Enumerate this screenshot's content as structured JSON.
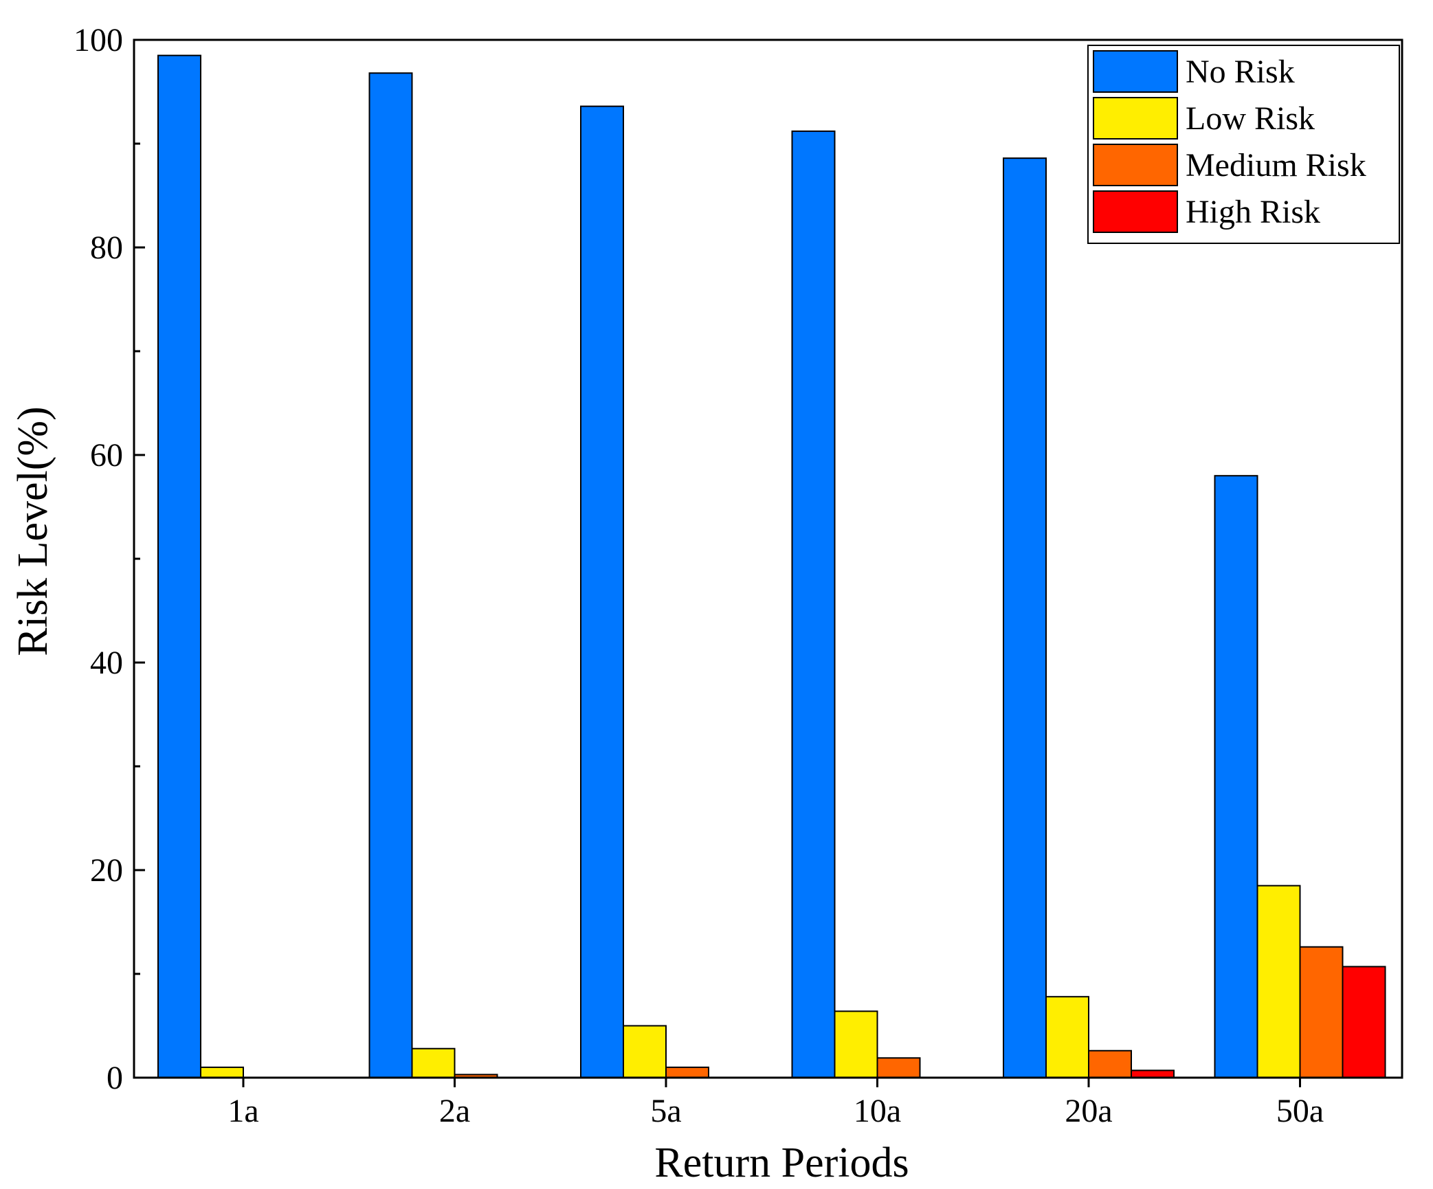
{
  "chart_data": {
    "type": "bar",
    "title": "",
    "xlabel": "Return Periods",
    "ylabel": "Risk Level(%)",
    "ylim": [
      0,
      100
    ],
    "yticks": [
      0,
      20,
      40,
      60,
      80,
      100
    ],
    "categories": [
      "1a",
      "2a",
      "5a",
      "10a",
      "20a",
      "50a"
    ],
    "series": [
      {
        "name": "No Risk",
        "color": "#0077ff",
        "values": [
          98.5,
          96.8,
          93.6,
          91.2,
          88.6,
          58.0
        ]
      },
      {
        "name": "Low Risk",
        "color": "#ffee00",
        "values": [
          1.0,
          2.8,
          5.0,
          6.4,
          7.8,
          18.5
        ]
      },
      {
        "name": "Medium Risk",
        "color": "#ff6600",
        "values": [
          0.0,
          0.3,
          1.0,
          1.9,
          2.6,
          12.6
        ]
      },
      {
        "name": "High Risk",
        "color": "#ff0000",
        "values": [
          0.0,
          0.0,
          0.0,
          0.0,
          0.7,
          10.7
        ]
      }
    ],
    "grid": false,
    "legend_position": "top-right"
  }
}
